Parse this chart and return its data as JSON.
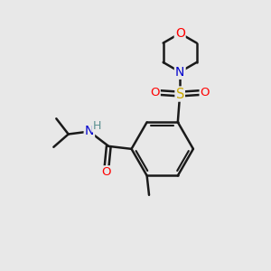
{
  "background_color": "#e8e8e8",
  "atom_colors": {
    "C": "#000000",
    "N": "#0000cc",
    "O": "#ff0000",
    "S": "#ccaa00",
    "H": "#5a9090"
  },
  "bond_color": "#1a1a1a",
  "bond_width": 1.8,
  "figsize": [
    3.0,
    3.0
  ],
  "dpi": 100,
  "xlim": [
    0,
    10
  ],
  "ylim": [
    0,
    10
  ]
}
